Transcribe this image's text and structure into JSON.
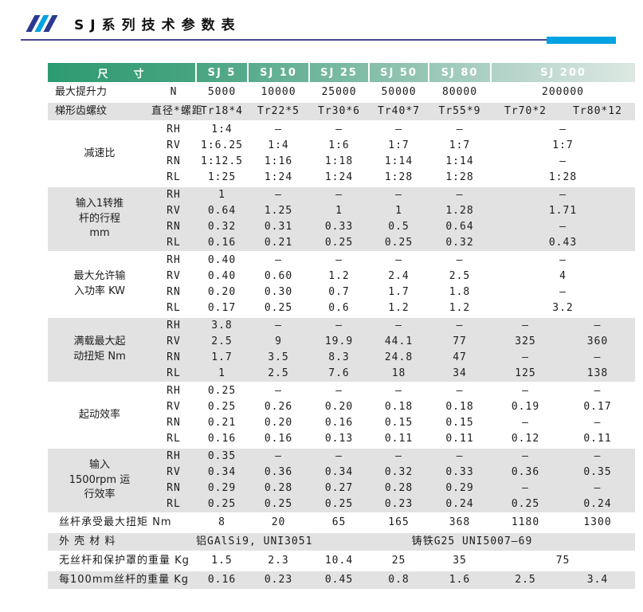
{
  "title": {
    "text": "SJ系列技术参数表"
  },
  "accent_colors": {
    "navy": "#2b3990",
    "cyan": "#00a3e0",
    "header_green_dark": "#2e9a72",
    "header_green_light": "#dde8e3",
    "stripe_grey": "#e2e2e2"
  },
  "table": {
    "size_header": "尺　　寸",
    "models": [
      "SJ 5",
      "SJ 10",
      "SJ 25",
      "SJ 50",
      "SJ 80",
      "SJ 200"
    ],
    "sections": [
      {
        "id": "max-lift-force",
        "bg": "white",
        "label": "最大提升力",
        "sublabel": "N",
        "rows": [
          {
            "cells": [
              "5000",
              "10000",
              "25000",
              "50000",
              "80000",
              [
                "200000",
                2
              ]
            ]
          }
        ]
      },
      {
        "id": "trapezoidal-thread",
        "bg": "grey",
        "label": "梯形齿螺纹",
        "sublabel": "直径*螺距",
        "rows": [
          {
            "cells": [
              "Tr18*4",
              "Tr22*5",
              "Tr30*6",
              "Tr40*7",
              "Tr55*9",
              "Tr70*2",
              "Tr80*12"
            ]
          }
        ]
      },
      {
        "id": "reduction-ratio",
        "bg": "white",
        "label": "减速比",
        "rows": [
          {
            "sub": "RH",
            "cells": [
              "1:4",
              "—",
              "—",
              "—",
              "—",
              [
                "—",
                2
              ]
            ]
          },
          {
            "sub": "RV",
            "cells": [
              "1:6.25",
              "1:4",
              "1:6",
              "1:7",
              "1:7",
              [
                "1:7",
                2
              ]
            ]
          },
          {
            "sub": "RN",
            "cells": [
              "1:12.5",
              "1:16",
              "1:18",
              "1:14",
              "1:14",
              [
                "—",
                2
              ]
            ]
          },
          {
            "sub": "RL",
            "cells": [
              "1:25",
              "1:24",
              "1:24",
              "1:28",
              "1:28",
              [
                "1:28",
                2
              ]
            ]
          }
        ]
      },
      {
        "id": "stroke-per-rev",
        "bg": "grey",
        "label": "输入1转推\n杆的行程\nmm",
        "rows": [
          {
            "sub": "RH",
            "cells": [
              "1",
              "—",
              "—",
              "—",
              "—",
              [
                "—",
                2
              ]
            ]
          },
          {
            "sub": "RV",
            "cells": [
              "0.64",
              "1.25",
              "1",
              "1",
              "1.28",
              [
                "1.71",
                2
              ]
            ]
          },
          {
            "sub": "RN",
            "cells": [
              "0.32",
              "0.31",
              "0.33",
              "0.5",
              "0.64",
              [
                "—",
                2
              ]
            ]
          },
          {
            "sub": "RL",
            "cells": [
              "0.16",
              "0.21",
              "0.25",
              "0.25",
              "0.32",
              [
                "0.43",
                2
              ]
            ]
          }
        ]
      },
      {
        "id": "max-input-power",
        "bg": "white",
        "label": "最大允许输\n入功率 KW",
        "rows": [
          {
            "sub": "RH",
            "cells": [
              "0.40",
              "—",
              "—",
              "—",
              "—",
              [
                "—",
                2
              ]
            ]
          },
          {
            "sub": "RV",
            "cells": [
              "0.40",
              "0.60",
              "1.2",
              "2.4",
              "2.5",
              [
                "4",
                2
              ]
            ]
          },
          {
            "sub": "RN",
            "cells": [
              "0.20",
              "0.30",
              "0.7",
              "1.7",
              "1.8",
              [
                "—",
                2
              ]
            ]
          },
          {
            "sub": "RL",
            "cells": [
              "0.17",
              "0.25",
              "0.6",
              "1.2",
              "1.2",
              [
                "3.2",
                2
              ]
            ]
          }
        ]
      },
      {
        "id": "max-starting-torque",
        "bg": "grey",
        "label": "满载最大起\n动扭矩 Nm",
        "rows": [
          {
            "sub": "RH",
            "cells": [
              "3.8",
              "—",
              "—",
              "—",
              "—",
              "—",
              "—"
            ]
          },
          {
            "sub": "RV",
            "cells": [
              "2.5",
              "9",
              "19.9",
              "44.1",
              "77",
              "325",
              "360"
            ]
          },
          {
            "sub": "RN",
            "cells": [
              "1.7",
              "3.5",
              "8.3",
              "24.8",
              "47",
              "—",
              "—"
            ]
          },
          {
            "sub": "RL",
            "cells": [
              "1",
              "2.5",
              "7.6",
              "18",
              "34",
              "125",
              "138"
            ]
          }
        ]
      },
      {
        "id": "starting-efficiency",
        "bg": "white",
        "label": "起动效率",
        "rows": [
          {
            "sub": "RH",
            "cells": [
              "0.25",
              "—",
              "—",
              "—",
              "—",
              "—",
              "—"
            ]
          },
          {
            "sub": "RV",
            "cells": [
              "0.25",
              "0.26",
              "0.20",
              "0.18",
              "0.18",
              "0.19",
              "0.17"
            ]
          },
          {
            "sub": "RN",
            "cells": [
              "0.21",
              "0.20",
              "0.16",
              "0.15",
              "0.15",
              "—",
              "—"
            ]
          },
          {
            "sub": "RL",
            "cells": [
              "0.16",
              "0.16",
              "0.13",
              "0.11",
              "0.11",
              "0.12",
              "0.11"
            ]
          }
        ]
      },
      {
        "id": "running-efficiency-1500rpm",
        "bg": "grey",
        "label": "输入\n1500rpm 运\n行效率",
        "rows": [
          {
            "sub": "RH",
            "cells": [
              "0.35",
              "—",
              "—",
              "—",
              "—",
              "—",
              "—"
            ]
          },
          {
            "sub": "RV",
            "cells": [
              "0.34",
              "0.36",
              "0.34",
              "0.32",
              "0.33",
              "0.36",
              "0.35"
            ]
          },
          {
            "sub": "RN",
            "cells": [
              "0.29",
              "0.28",
              "0.27",
              "0.28",
              "0.29",
              "—",
              "—"
            ]
          },
          {
            "sub": "RL",
            "cells": [
              "0.25",
              "0.25",
              "0.25",
              "0.23",
              "0.24",
              "0.25",
              "0.24"
            ]
          }
        ]
      },
      {
        "id": "max-screw-torque",
        "bg": "white",
        "wide": true,
        "label": "丝杆承受最大扭矩 Nm",
        "rows": [
          {
            "cells": [
              "8",
              "20",
              "65",
              "165",
              "368",
              "1180",
              "1300"
            ]
          }
        ]
      },
      {
        "id": "housing-material",
        "bg": "grey",
        "wide": true,
        "label": "外 壳 材 料",
        "rows": [
          {
            "cells": [
              [
                "铝GAlSi9, UNI3051",
                2
              ],
              [
                "铸铁G25 UNI5007—69",
                5
              ]
            ]
          }
        ]
      },
      {
        "id": "weight-without-screw",
        "bg": "white",
        "wide": true,
        "label": "无丝杆和保护罩的重量 Kg",
        "rows": [
          {
            "cells": [
              "1.5",
              "2.3",
              "10.4",
              "25",
              "35",
              [
                "75",
                2
              ]
            ]
          }
        ]
      },
      {
        "id": "weight-per-100mm-screw",
        "bg": "grey",
        "wide": true,
        "label": "每100mm丝杆的重量 Kg",
        "rows": [
          {
            "cells": [
              "0.16",
              "0.23",
              "0.45",
              "0.8",
              "1.6",
              "2.5",
              "3.4"
            ]
          }
        ]
      }
    ]
  }
}
